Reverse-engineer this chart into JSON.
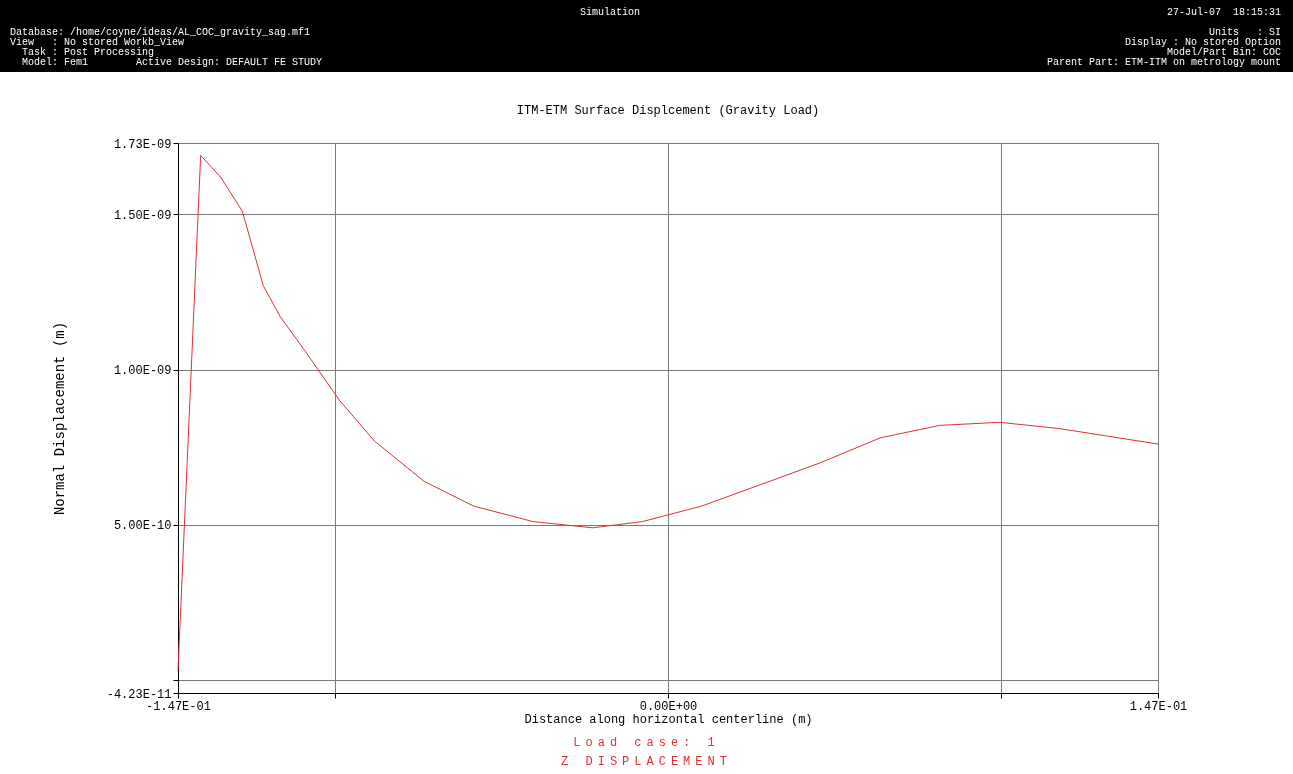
{
  "chart_data": {
    "type": "line",
    "title": "ITM-ETM Surface Displcement (Gravity Load)",
    "xlabel": "Distance along horizontal centerline (m)",
    "ylabel": "Normal Displacement (m)",
    "annotations": [
      "Simulation",
      "27-Jul-07  18:15:31",
      "Database: /home/coyne/ideas/AL_COC_gravity_sag.mf1",
      "View   : No stored Workb_View",
      "  Task : Post Processing",
      "  Model: Fem1        Active Design: DEFAULT FE STUDY",
      "Units   : SI",
      "Display : No stored Option",
      "Model/Part Bin: COC",
      "Parent Part: ETM-ITM on metrology mount",
      "Load case: 1",
      "Z DISPLACEMENT"
    ],
    "x": [
      -0.147,
      -0.1402,
      -0.1342,
      -0.1277,
      -0.1214,
      -0.1163,
      -0.1089,
      -0.0985,
      -0.0881,
      -0.0732,
      -0.0583,
      -0.0405,
      -0.0226,
      -0.0077,
      0.0101,
      0.028,
      0.0458,
      0.0637,
      0.0815,
      0.0994,
      0.1173,
      0.1351,
      0.147
    ],
    "series": [
      {
        "color": "#e03030",
        "values": [
          3e-11,
          1.69e-09,
          1.62e-09,
          1.51e-09,
          1.27e-09,
          1.17e-09,
          1.06e-09,
          9e-10,
          7.7e-10,
          6.4e-10,
          5.6e-10,
          5.1e-10,
          4.9e-10,
          5.1e-10,
          5.6e-10,
          6.3e-10,
          7e-10,
          7.8e-10,
          8.2e-10,
          8.3e-10,
          8.1e-10,
          7.8e-10,
          7.6e-10
        ]
      }
    ],
    "xlim": [
      -0.147,
      0.147
    ],
    "ylim": [
      -4.23e-11,
      1.73e-09
    ],
    "xticks": [
      {
        "value": -0.147,
        "label": "-1.47E-01"
      },
      {
        "value": -0.1,
        "label": null
      },
      {
        "value": 0,
        "label": "0.00E+00"
      },
      {
        "value": 0.1,
        "label": null
      },
      {
        "value": 0.147,
        "label": "1.47E-01"
      }
    ],
    "yticks": [
      {
        "value": -4.23e-11,
        "label": "-4.23E-11"
      },
      {
        "value": 0,
        "label": null
      },
      {
        "value": 5e-10,
        "label": "5.00E-10"
      },
      {
        "value": 1e-09,
        "label": "1.00E-09"
      },
      {
        "value": 1.5e-09,
        "label": "1.50E-09"
      },
      {
        "value": 1.73e-09,
        "label": "1.73E-09"
      }
    ],
    "grid": true,
    "legend": false,
    "line_style": "solid",
    "marker": "none"
  }
}
